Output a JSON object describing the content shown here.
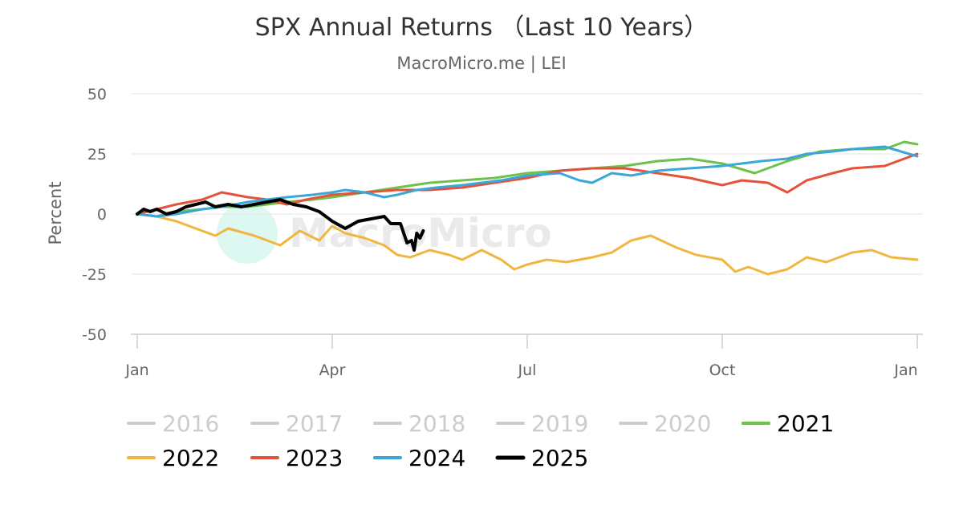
{
  "chart_data": {
    "type": "line",
    "title": "SPX Annual Returns （Last 10 Years）",
    "subtitle": "MacroMicro.me | LEI",
    "watermark": "MacroMicro",
    "xlabel": "",
    "ylabel": "Percent",
    "ylim": [
      -50,
      50
    ],
    "yticks": [
      "50",
      "25",
      "0",
      "-25",
      "-50"
    ],
    "xticks": [
      "Jan",
      "Apr",
      "Jul",
      "Oct",
      "Jan"
    ],
    "x_unit": "month of year (0 = Jan 1, 12 = next Jan 1)",
    "legend_position": "bottom",
    "series": [
      {
        "name": "2016",
        "color": "#cccccc",
        "active": false,
        "points": []
      },
      {
        "name": "2017",
        "color": "#cccccc",
        "active": false,
        "points": []
      },
      {
        "name": "2018",
        "color": "#cccccc",
        "active": false,
        "points": []
      },
      {
        "name": "2019",
        "color": "#cccccc",
        "active": false,
        "points": []
      },
      {
        "name": "2020",
        "color": "#cccccc",
        "active": false,
        "points": []
      },
      {
        "name": "2021",
        "color": "#6cc24a",
        "active": true,
        "points": [
          [
            0,
            0
          ],
          [
            0.3,
            -1
          ],
          [
            0.6,
            1
          ],
          [
            1,
            2
          ],
          [
            1.3,
            3
          ],
          [
            1.7,
            3
          ],
          [
            2,
            4
          ],
          [
            2.3,
            5
          ],
          [
            2.7,
            6
          ],
          [
            3,
            7
          ],
          [
            3.5,
            9
          ],
          [
            4,
            11
          ],
          [
            4.5,
            13
          ],
          [
            5,
            14
          ],
          [
            5.5,
            15
          ],
          [
            6,
            17
          ],
          [
            6.5,
            18
          ],
          [
            7,
            19
          ],
          [
            7.5,
            20
          ],
          [
            8,
            22
          ],
          [
            8.5,
            23
          ],
          [
            9,
            21
          ],
          [
            9.5,
            17
          ],
          [
            10,
            22
          ],
          [
            10.5,
            26
          ],
          [
            11,
            27
          ],
          [
            11.5,
            27
          ],
          [
            11.8,
            30
          ],
          [
            12,
            29
          ]
        ]
      },
      {
        "name": "2022",
        "color": "#f0b640",
        "active": true,
        "points": [
          [
            0,
            0
          ],
          [
            0.3,
            -1
          ],
          [
            0.6,
            -3
          ],
          [
            1,
            -7
          ],
          [
            1.2,
            -9
          ],
          [
            1.4,
            -6
          ],
          [
            1.8,
            -9
          ],
          [
            2,
            -11
          ],
          [
            2.2,
            -13
          ],
          [
            2.5,
            -7
          ],
          [
            2.8,
            -11
          ],
          [
            3,
            -5
          ],
          [
            3.2,
            -8
          ],
          [
            3.5,
            -10
          ],
          [
            3.8,
            -13
          ],
          [
            4,
            -17
          ],
          [
            4.2,
            -18
          ],
          [
            4.5,
            -15
          ],
          [
            4.8,
            -17
          ],
          [
            5,
            -19
          ],
          [
            5.3,
            -15
          ],
          [
            5.6,
            -19
          ],
          [
            5.8,
            -23
          ],
          [
            6,
            -21
          ],
          [
            6.3,
            -19
          ],
          [
            6.6,
            -20
          ],
          [
            7,
            -18
          ],
          [
            7.3,
            -16
          ],
          [
            7.6,
            -11
          ],
          [
            7.9,
            -9
          ],
          [
            8.3,
            -14
          ],
          [
            8.6,
            -17
          ],
          [
            9,
            -19
          ],
          [
            9.2,
            -24
          ],
          [
            9.4,
            -22
          ],
          [
            9.7,
            -25
          ],
          [
            10,
            -23
          ],
          [
            10.3,
            -18
          ],
          [
            10.6,
            -20
          ],
          [
            11,
            -16
          ],
          [
            11.3,
            -15
          ],
          [
            11.6,
            -18
          ],
          [
            12,
            -19
          ]
        ]
      },
      {
        "name": "2023",
        "color": "#e4523b",
        "active": true,
        "points": [
          [
            0,
            0
          ],
          [
            0.3,
            2
          ],
          [
            0.6,
            4
          ],
          [
            1,
            6
          ],
          [
            1.3,
            9
          ],
          [
            1.7,
            7
          ],
          [
            2,
            6
          ],
          [
            2.3,
            4
          ],
          [
            2.6,
            6
          ],
          [
            3,
            8
          ],
          [
            3.5,
            9
          ],
          [
            4,
            10
          ],
          [
            4.5,
            10
          ],
          [
            5,
            11
          ],
          [
            5.5,
            13
          ],
          [
            6,
            15
          ],
          [
            6.5,
            18
          ],
          [
            7,
            19
          ],
          [
            7.5,
            19
          ],
          [
            8,
            17
          ],
          [
            8.5,
            15
          ],
          [
            9,
            12
          ],
          [
            9.3,
            14
          ],
          [
            9.7,
            13
          ],
          [
            10,
            9
          ],
          [
            10.3,
            14
          ],
          [
            10.7,
            17
          ],
          [
            11,
            19
          ],
          [
            11.5,
            20
          ],
          [
            12,
            25
          ]
        ]
      },
      {
        "name": "2024",
        "color": "#3aa7d8",
        "active": true,
        "points": [
          [
            0,
            0
          ],
          [
            0.3,
            -1
          ],
          [
            0.6,
            0
          ],
          [
            1,
            2
          ],
          [
            1.3,
            3
          ],
          [
            1.7,
            5
          ],
          [
            2,
            6
          ],
          [
            2.3,
            7
          ],
          [
            2.7,
            8
          ],
          [
            3,
            9
          ],
          [
            3.2,
            10
          ],
          [
            3.5,
            9
          ],
          [
            3.8,
            7
          ],
          [
            4,
            8
          ],
          [
            4.3,
            10
          ],
          [
            4.6,
            11
          ],
          [
            5,
            12
          ],
          [
            5.3,
            13
          ],
          [
            5.6,
            14
          ],
          [
            6,
            16
          ],
          [
            6.5,
            17
          ],
          [
            6.8,
            14
          ],
          [
            7,
            13
          ],
          [
            7.3,
            17
          ],
          [
            7.6,
            16
          ],
          [
            8,
            18
          ],
          [
            8.5,
            19
          ],
          [
            9,
            20
          ],
          [
            9.3,
            21
          ],
          [
            9.6,
            22
          ],
          [
            10,
            23
          ],
          [
            10.3,
            25
          ],
          [
            10.7,
            26
          ],
          [
            11,
            27
          ],
          [
            11.5,
            28
          ],
          [
            12,
            24
          ]
        ]
      },
      {
        "name": "2025",
        "color": "#000000",
        "active": true,
        "points": [
          [
            0,
            0
          ],
          [
            0.1,
            2
          ],
          [
            0.2,
            1
          ],
          [
            0.3,
            2
          ],
          [
            0.45,
            0
          ],
          [
            0.6,
            1
          ],
          [
            0.75,
            3
          ],
          [
            0.9,
            4
          ],
          [
            1.05,
            5
          ],
          [
            1.2,
            3
          ],
          [
            1.4,
            4
          ],
          [
            1.6,
            3
          ],
          [
            1.8,
            4
          ],
          [
            2,
            5
          ],
          [
            2.2,
            6
          ],
          [
            2.4,
            4
          ],
          [
            2.6,
            3
          ],
          [
            2.8,
            1
          ],
          [
            3,
            -3
          ],
          [
            3.2,
            -6
          ],
          [
            3.4,
            -3
          ],
          [
            3.6,
            -2
          ],
          [
            3.8,
            -1
          ],
          [
            3.9,
            -4
          ],
          [
            4.05,
            -4
          ],
          [
            4.15,
            -12
          ],
          [
            4.22,
            -11
          ],
          [
            4.26,
            -15
          ],
          [
            4.3,
            -8
          ],
          [
            4.35,
            -10
          ],
          [
            4.4,
            -7
          ]
        ]
      }
    ]
  }
}
